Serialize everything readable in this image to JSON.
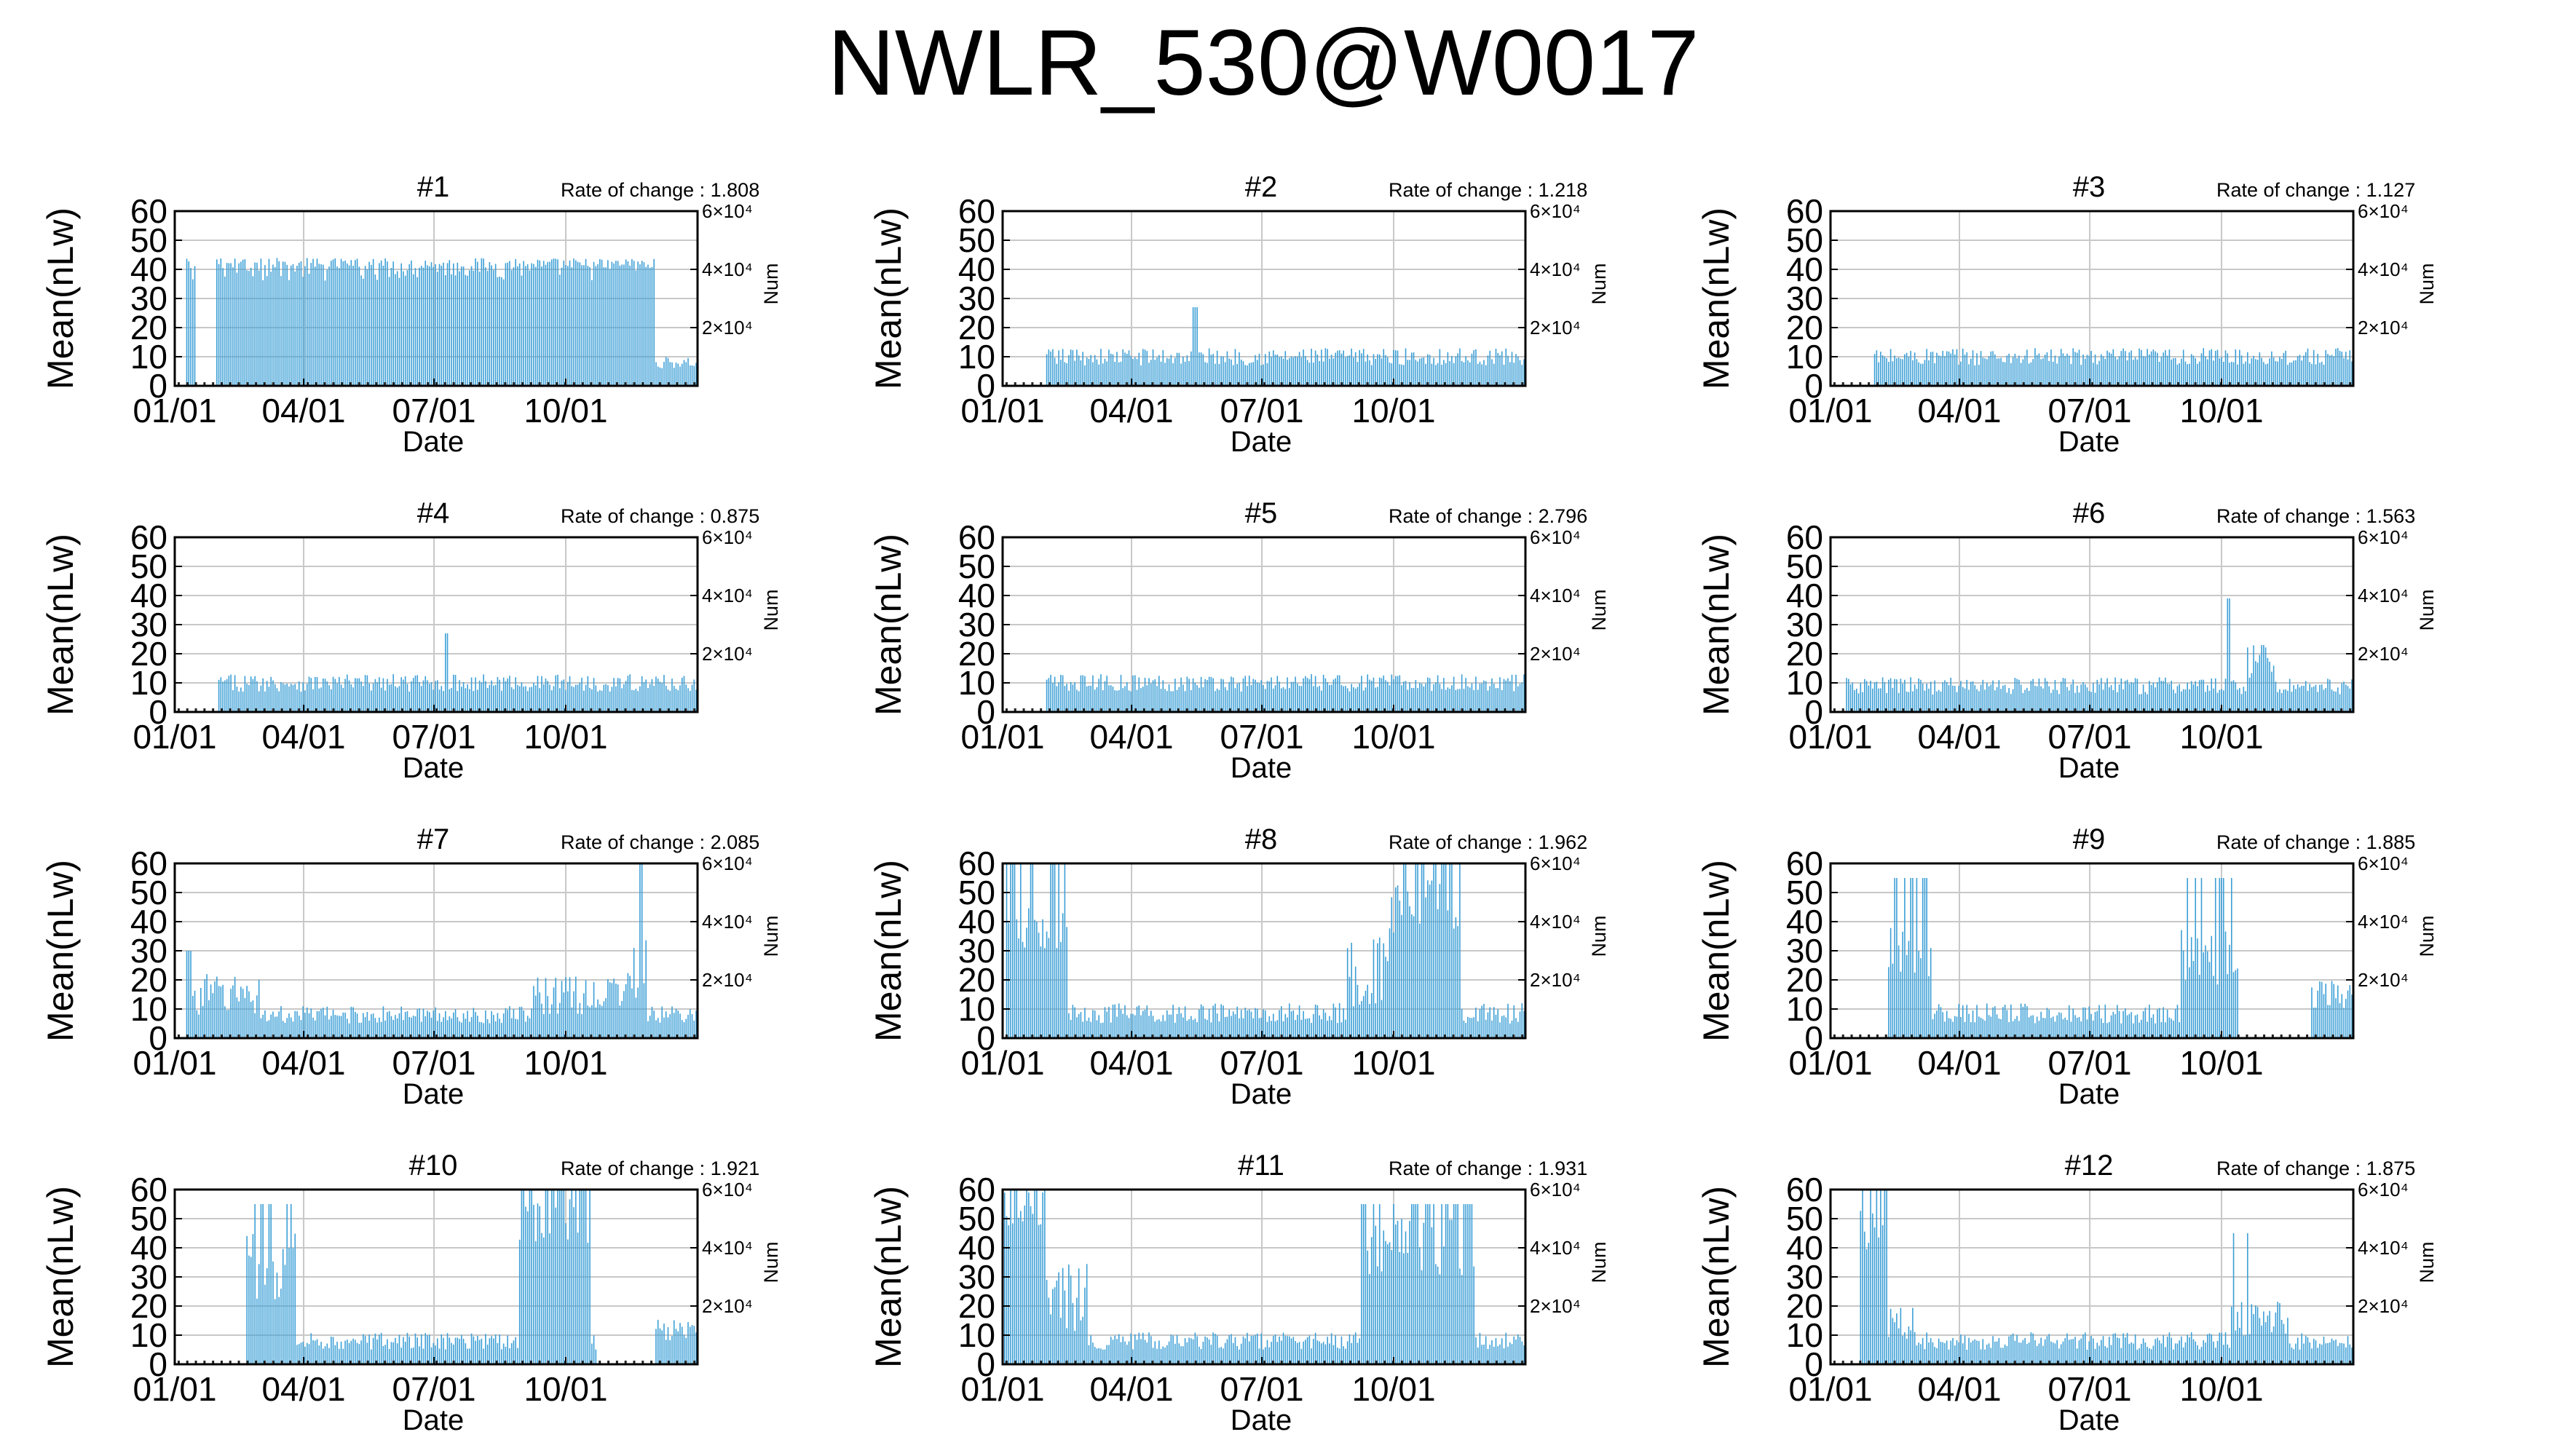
{
  "figure": {
    "title": "NWLR_530@W0017",
    "series_color": "#3c9fd6"
  },
  "chart_data": [
    {
      "type": "bar",
      "title": "#1",
      "rate_label": "Rate of change : 1.808",
      "xlabel": "Date",
      "ylabel": "Mean(nLw)",
      "y2label": "Num",
      "xticks": [
        "01/01",
        "04/01",
        "07/01",
        "10/01"
      ],
      "yticks": [
        "0",
        "10",
        "20",
        "30",
        "40",
        "50",
        "60"
      ],
      "ylim": [
        0,
        60
      ],
      "y2ticks": [
        "2×10⁴",
        "4×10⁴",
        "6×10⁴"
      ],
      "y2lim": [
        0,
        60000
      ],
      "grid": true,
      "pattern": "high_all_year"
    },
    {
      "type": "bar",
      "title": "#2",
      "rate_label": "Rate of change : 1.218",
      "xlabel": "Date",
      "ylabel": "Mean(nLw)",
      "y2label": "Num",
      "xticks": [
        "01/01",
        "04/01",
        "07/01",
        "10/01"
      ],
      "yticks": [
        "0",
        "10",
        "20",
        "30",
        "40",
        "50",
        "60"
      ],
      "ylim": [
        0,
        60
      ],
      "y2ticks": [
        "2×10⁴",
        "4×10⁴",
        "6×10⁴"
      ],
      "y2lim": [
        0,
        60000
      ],
      "grid": true,
      "pattern": "low_flat_spike_april"
    },
    {
      "type": "bar",
      "title": "#3",
      "rate_label": "Rate of change : 1.127",
      "xlabel": "Date",
      "ylabel": "Mean(nLw)",
      "y2label": "Num",
      "xticks": [
        "01/01",
        "04/01",
        "07/01",
        "10/01"
      ],
      "yticks": [
        "0",
        "10",
        "20",
        "30",
        "40",
        "50",
        "60"
      ],
      "ylim": [
        0,
        60
      ],
      "y2ticks": [
        "2×10⁴",
        "4×10⁴",
        "6×10⁴"
      ],
      "y2lim": [
        0,
        60000
      ],
      "grid": true,
      "pattern": "low_flat"
    },
    {
      "type": "bar",
      "title": "#4",
      "rate_label": "Rate of change : 0.875",
      "xlabel": "Date",
      "ylabel": "Mean(nLw)",
      "y2label": "Num",
      "xticks": [
        "01/01",
        "04/01",
        "07/01",
        "10/01"
      ],
      "yticks": [
        "0",
        "10",
        "20",
        "30",
        "40",
        "50",
        "60"
      ],
      "ylim": [
        0,
        60
      ],
      "y2ticks": [
        "2×10⁴",
        "4×10⁴",
        "6×10⁴"
      ],
      "y2lim": [
        0,
        60000
      ],
      "grid": true,
      "pattern": "low_flat_spike_july"
    },
    {
      "type": "bar",
      "title": "#5",
      "rate_label": "Rate of change : 2.796",
      "xlabel": "Date",
      "ylabel": "Mean(nLw)",
      "y2label": "Num",
      "xticks": [
        "01/01",
        "04/01",
        "07/01",
        "10/01"
      ],
      "yticks": [
        "0",
        "10",
        "20",
        "30",
        "40",
        "50",
        "60"
      ],
      "ylim": [
        0,
        60
      ],
      "y2ticks": [
        "2×10⁴",
        "4×10⁴",
        "6×10⁴"
      ],
      "y2lim": [
        0,
        60000
      ],
      "grid": true,
      "pattern": "low_flat"
    },
    {
      "type": "bar",
      "title": "#6",
      "rate_label": "Rate of change : 1.563",
      "xlabel": "Date",
      "ylabel": "Mean(nLw)",
      "y2label": "Num",
      "xticks": [
        "01/01",
        "04/01",
        "07/01",
        "10/01"
      ],
      "yticks": [
        "0",
        "10",
        "20",
        "30",
        "40",
        "50",
        "60"
      ],
      "ylim": [
        0,
        60
      ],
      "y2ticks": [
        "2×10⁴",
        "4×10⁴",
        "6×10⁴"
      ],
      "y2lim": [
        0,
        60000
      ],
      "grid": true,
      "pattern": "low_spike_october"
    },
    {
      "type": "bar",
      "title": "#7",
      "rate_label": "Rate of change : 2.085",
      "xlabel": "Date",
      "ylabel": "Mean(nLw)",
      "y2label": "Num",
      "xticks": [
        "01/01",
        "04/01",
        "07/01",
        "10/01"
      ],
      "yticks": [
        "0",
        "10",
        "20",
        "30",
        "40",
        "50",
        "60"
      ],
      "ylim": [
        0,
        60
      ],
      "y2ticks": [
        "2×10⁴",
        "4×10⁴",
        "6×10⁴"
      ],
      "y2lim": [
        0,
        60000
      ],
      "grid": true,
      "pattern": "low_with_late_spikes"
    },
    {
      "type": "bar",
      "title": "#8",
      "rate_label": "Rate of change : 1.962",
      "xlabel": "Date",
      "ylabel": "Mean(nLw)",
      "y2label": "Num",
      "xticks": [
        "01/01",
        "04/01",
        "07/01",
        "10/01"
      ],
      "yticks": [
        "0",
        "10",
        "20",
        "30",
        "40",
        "50",
        "60"
      ],
      "ylim": [
        0,
        60
      ],
      "y2ticks": [
        "2×10⁴",
        "4×10⁴",
        "6×10⁴"
      ],
      "y2lim": [
        0,
        60000
      ],
      "grid": true,
      "pattern": "high_winter_and_autumn"
    },
    {
      "type": "bar",
      "title": "#9",
      "rate_label": "Rate of change : 1.885",
      "xlabel": "Date",
      "ylabel": "Mean(nLw)",
      "y2label": "Num",
      "xticks": [
        "01/01",
        "04/01",
        "07/01",
        "10/01"
      ],
      "yticks": [
        "0",
        "10",
        "20",
        "30",
        "40",
        "50",
        "60"
      ],
      "ylim": [
        0,
        60
      ],
      "y2ticks": [
        "2×10⁴",
        "4×10⁴",
        "6×10⁴"
      ],
      "y2lim": [
        0,
        60000
      ],
      "grid": true,
      "pattern": "high_feb_and_september"
    },
    {
      "type": "bar",
      "title": "#10",
      "rate_label": "Rate of change : 1.921",
      "xlabel": "Date",
      "ylabel": "Mean(nLw)",
      "y2label": "Num",
      "xticks": [
        "01/01",
        "04/01",
        "07/01",
        "10/01"
      ],
      "yticks": [
        "0",
        "10",
        "20",
        "30",
        "40",
        "50",
        "60"
      ],
      "ylim": [
        0,
        60
      ],
      "y2ticks": [
        "2×10⁴",
        "4×10⁴",
        "6×10⁴"
      ],
      "y2lim": [
        0,
        60000
      ],
      "grid": true,
      "pattern": "high_feb_and_september_dense"
    },
    {
      "type": "bar",
      "title": "#11",
      "rate_label": "Rate of change : 1.931",
      "xlabel": "Date",
      "ylabel": "Mean(nLw)",
      "y2label": "Num",
      "xticks": [
        "01/01",
        "04/01",
        "07/01",
        "10/01"
      ],
      "yticks": [
        "0",
        "10",
        "20",
        "30",
        "40",
        "50",
        "60"
      ],
      "ylim": [
        0,
        60
      ],
      "y2ticks": [
        "2×10⁴",
        "4×10⁴",
        "6×10⁴"
      ],
      "y2lim": [
        0,
        60000
      ],
      "grid": true,
      "pattern": "high_january_and_autumn"
    },
    {
      "type": "bar",
      "title": "#12",
      "rate_label": "Rate of change : 1.875",
      "xlabel": "Date",
      "ylabel": "Mean(nLw)",
      "y2label": "Num",
      "xticks": [
        "01/01",
        "04/01",
        "07/01",
        "10/01"
      ],
      "yticks": [
        "0",
        "10",
        "20",
        "30",
        "40",
        "50",
        "60"
      ],
      "ylim": [
        0,
        60
      ],
      "y2ticks": [
        "2×10⁴",
        "4×10⁴",
        "6×10⁴"
      ],
      "y2lim": [
        0,
        60000
      ],
      "grid": true,
      "pattern": "high_january_low_rest"
    }
  ]
}
